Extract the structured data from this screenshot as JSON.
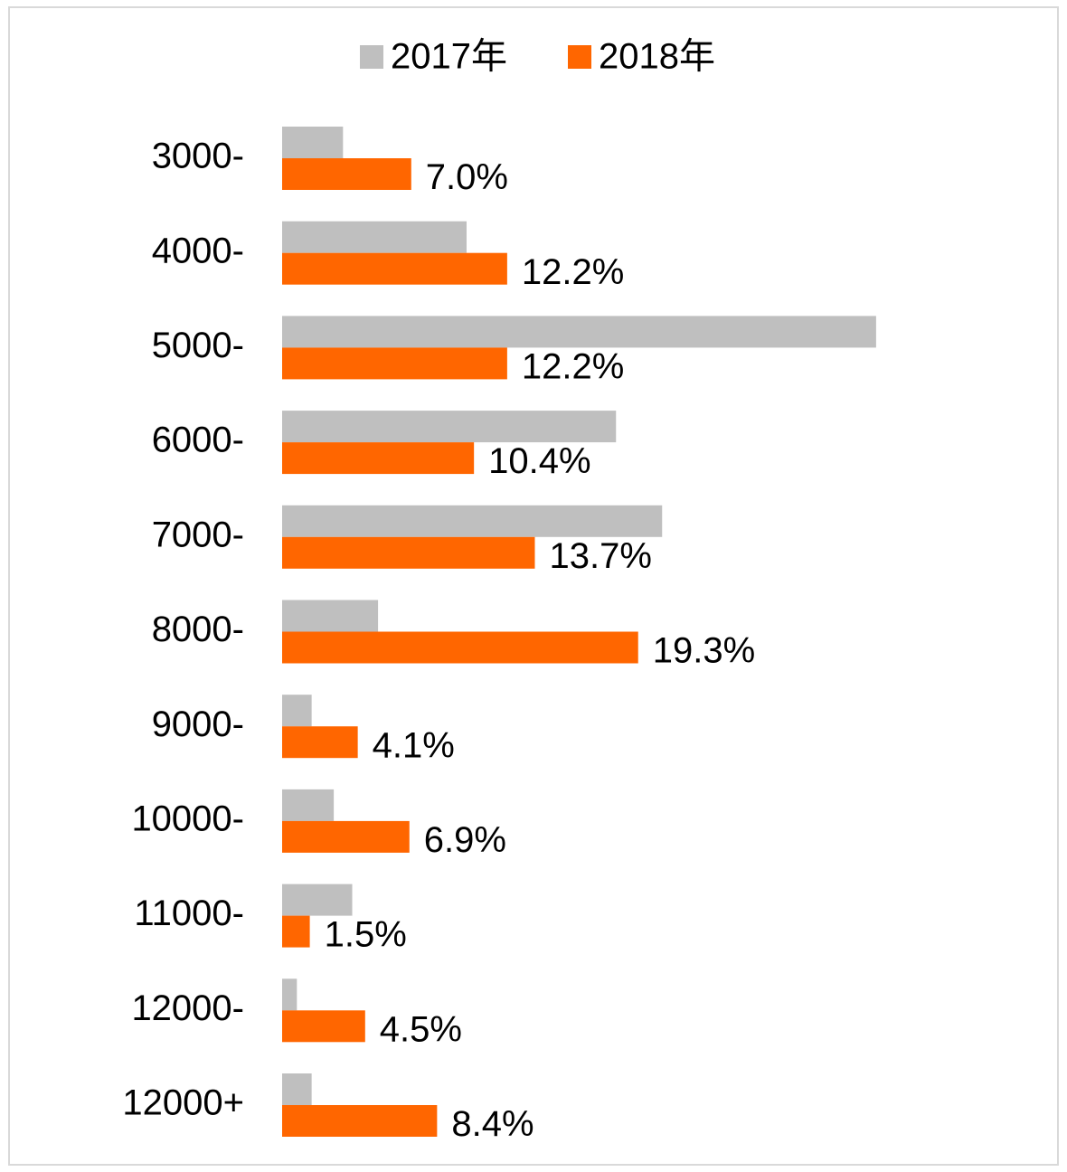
{
  "chart_data": {
    "type": "bar",
    "orientation": "horizontal",
    "categories": [
      "3000-",
      "4000-",
      "5000-",
      "6000-",
      "7000-",
      "8000-",
      "9000-",
      "10000-",
      "11000-",
      "12000-",
      "12000+"
    ],
    "series": [
      {
        "name": "2017年",
        "color": "#bfbfbf",
        "values": [
          3.3,
          10.0,
          32.2,
          18.1,
          20.6,
          5.2,
          1.6,
          2.8,
          3.8,
          0.8,
          1.6
        ]
      },
      {
        "name": "2018年",
        "color": "#ff6600",
        "values": [
          7.0,
          12.2,
          12.2,
          10.4,
          13.7,
          19.3,
          4.1,
          6.9,
          1.5,
          4.5,
          8.4
        ],
        "value_labels": [
          "7.0%",
          "12.2%",
          "12.2%",
          "10.4%",
          "13.7%",
          "19.3%",
          "4.1%",
          "6.9%",
          "1.5%",
          "4.5%",
          "8.4%"
        ]
      }
    ],
    "legend": "top"
  }
}
